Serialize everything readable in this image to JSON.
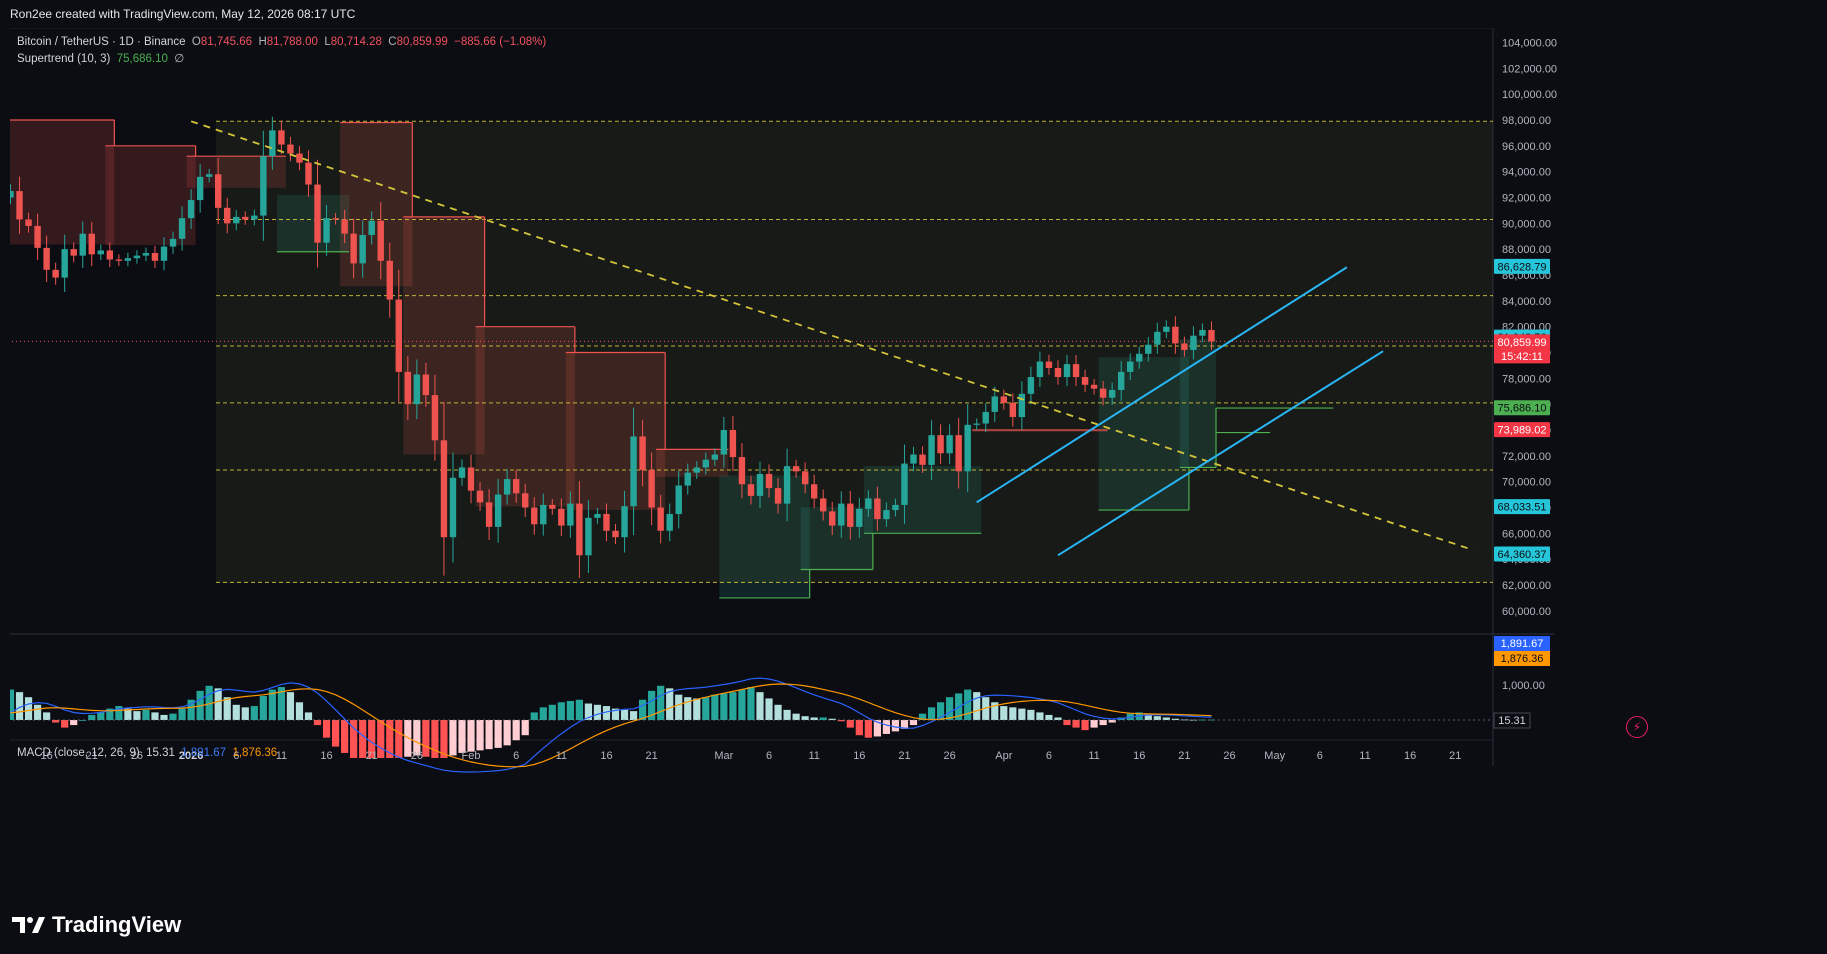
{
  "header": {
    "credit": "Ron2ee created with TradingView.com, May 12, 2026 08:17 UTC"
  },
  "legend": {
    "symbol": "Bitcoin / TetherUS · 1D · Binance",
    "open_label": "O",
    "open": "81,745.66",
    "high_label": "H",
    "high": "81,788.00",
    "low_label": "L",
    "low": "80,714.28",
    "close_label": "C",
    "close": "80,859.99",
    "change": "−885.66 (−1.08%)",
    "supertrend_label": "Supertrend (10, 3)",
    "supertrend_value": "75,686.10",
    "supertrend_icon": "∅"
  },
  "macd_legend": {
    "label": "MACD (close, 12, 26, 9)",
    "hist": "15.31",
    "macd": "1,891.67",
    "signal": "1,876.36"
  },
  "badges": {
    "level_top": "86,628.79",
    "level_81k": "81,042.56",
    "last_price": "80,859.99",
    "countdown": "15:42:11",
    "supertrend": "75,686.10",
    "level_73k": "73,989.02",
    "level_68k": "68,033.51",
    "level_64k": "64,360.37",
    "macd_line": "1,891.67",
    "macd_signal": "1,876.36",
    "macd_hist": "15.31"
  },
  "branding": {
    "name": "TradingView"
  },
  "colors": {
    "background": "#0b0d13",
    "up": "#26a69a",
    "down": "#ef5350",
    "supertrend_up": "#4caf50",
    "supertrend_down": "#ef5350",
    "channel": "#29b6f6",
    "levels": "#d4c43a",
    "macd": "#2962ff",
    "signal": "#ff9800"
  },
  "chart_data": {
    "type": "candlestick",
    "symbol": "Bitcoin / TetherUS",
    "interval": "1D",
    "exchange": "Binance",
    "y_ticks": [
      "104,000.00",
      "102,000.00",
      "100,000.00",
      "98,000.00",
      "96,000.00",
      "94,000.00",
      "92,000.00",
      "90,000.00",
      "88,000.00",
      "86,000.00",
      "84,000.00",
      "82,000.00",
      "80,000.00",
      "78,000.00",
      "76,000.00",
      "74,000.00",
      "72,000.00",
      "70,000.00",
      "68,000.00",
      "66,000.00",
      "64,000.00",
      "62,000.00",
      "60,000.00"
    ],
    "y_tick_values": [
      104000,
      102000,
      100000,
      98000,
      96000,
      94000,
      92000,
      90000,
      88000,
      86000,
      84000,
      82000,
      80000,
      78000,
      76000,
      74000,
      72000,
      70000,
      68000,
      66000,
      64000,
      62000,
      60000
    ],
    "x_labels": [
      {
        "text": "11",
        "bar": -1
      },
      {
        "text": "16",
        "bar": 4
      },
      {
        "text": "21",
        "bar": 9
      },
      {
        "text": "26",
        "bar": 14
      },
      {
        "text": "2026",
        "bar": 20
      },
      {
        "text": "6",
        "bar": 25
      },
      {
        "text": "11",
        "bar": 30
      },
      {
        "text": "16",
        "bar": 35
      },
      {
        "text": "21",
        "bar": 40
      },
      {
        "text": "26",
        "bar": 45
      },
      {
        "text": "Feb",
        "bar": 51
      },
      {
        "text": "6",
        "bar": 56
      },
      {
        "text": "11",
        "bar": 61
      },
      {
        "text": "16",
        "bar": 66
      },
      {
        "text": "21",
        "bar": 71
      },
      {
        "text": "Mar",
        "bar": 79
      },
      {
        "text": "6",
        "bar": 84
      },
      {
        "text": "11",
        "bar": 89
      },
      {
        "text": "16",
        "bar": 94
      },
      {
        "text": "21",
        "bar": 99
      },
      {
        "text": "26",
        "bar": 104
      },
      {
        "text": "Apr",
        "bar": 110
      },
      {
        "text": "6",
        "bar": 115
      },
      {
        "text": "11",
        "bar": 120
      },
      {
        "text": "16",
        "bar": 125
      },
      {
        "text": "21",
        "bar": 130
      },
      {
        "text": "26",
        "bar": 135
      },
      {
        "text": "May",
        "bar": 140
      },
      {
        "text": "6",
        "bar": 145
      },
      {
        "text": "11",
        "bar": 150
      },
      {
        "text": "16",
        "bar": 155
      },
      {
        "text": "21",
        "bar": 160
      }
    ],
    "closes": [
      92500,
      90300,
      89800,
      88100,
      86400,
      85800,
      88000,
      87500,
      89200,
      87600,
      87900,
      87200,
      87100,
      87300,
      87500,
      87700,
      87100,
      88200,
      88800,
      90400,
      91800,
      93600,
      93800,
      91200,
      90000,
      90500,
      90300,
      90600,
      95200,
      97200,
      96100,
      95400,
      94700,
      93000,
      88500,
      90400,
      90300,
      89200,
      86900,
      89100,
      90200,
      87100,
      84100,
      78500,
      76000,
      78300,
      76700,
      73200,
      65700,
      70300,
      71100,
      69300,
      68400,
      66500,
      69000,
      70200,
      69100,
      68000,
      66700,
      68200,
      67900,
      66600,
      68300,
      64300,
      67200,
      67500,
      66200,
      65700,
      68100,
      73500,
      70900,
      68000,
      66200,
      67500,
      69700,
      70700,
      71100,
      71700,
      72100,
      74000,
      71900,
      69800,
      68900,
      70600,
      69500,
      68300,
      71200,
      70800,
      69800,
      68700,
      67700,
      66600,
      68300,
      66500,
      67900,
      68700,
      67100,
      67800,
      68200,
      71400,
      72100,
      71300,
      73600,
      72200,
      73600,
      70800,
      74400,
      74500,
      75400,
      76600,
      76100,
      75000,
      76800,
      78100,
      79300,
      78800,
      78100,
      79100,
      78100,
      77500,
      77200,
      76500,
      77100,
      78500,
      79300,
      79900,
      80600,
      81600,
      82000,
      80700,
      80200,
      81300,
      81745,
      80860
    ],
    "open_first": 92000,
    "highlight_levels": [
      97900,
      90300,
      84400,
      80500,
      76100,
      70900,
      62200
    ],
    "trendline_down": {
      "from": {
        "bar": 20,
        "price": 97900
      },
      "to": {
        "bar": 162,
        "price": 64700
      }
    },
    "channel_upper": {
      "from": {
        "bar": 107,
        "price": 68400
      },
      "to": {
        "bar": 148,
        "price": 86600
      }
    },
    "channel_lower": {
      "from": {
        "bar": 116,
        "price": 64300
      },
      "to": {
        "bar": 152,
        "price": 80100
      }
    },
    "supertrend": [
      {
        "bar": 0,
        "bar_end": 11,
        "value": 98000,
        "dir": "down"
      },
      {
        "bar": 11,
        "bar_end": 20,
        "value": 96000,
        "dir": "down"
      },
      {
        "bar": 20,
        "bar_end": 30,
        "value": 95200,
        "dir": "down"
      },
      {
        "bar": 30,
        "bar_end": 37,
        "value": 87800,
        "dir": "up"
      },
      {
        "bar": 37,
        "bar_end": 44,
        "value": 97800,
        "dir": "down"
      },
      {
        "bar": 44,
        "bar_end": 52,
        "value": 90500,
        "dir": "down"
      },
      {
        "bar": 52,
        "bar_end": 62,
        "value": 82000,
        "dir": "down"
      },
      {
        "bar": 62,
        "bar_end": 72,
        "value": 80000,
        "dir": "down"
      },
      {
        "bar": 72,
        "bar_end": 79,
        "value": 72500,
        "dir": "down"
      },
      {
        "bar": 79,
        "bar_end": 88,
        "value": 61000,
        "dir": "up"
      },
      {
        "bar": 88,
        "bar_end": 95,
        "value": 63200,
        "dir": "up"
      },
      {
        "bar": 95,
        "bar_end": 107,
        "value": 66000,
        "dir": "up"
      },
      {
        "bar": 107,
        "bar_end": 121,
        "value": 74000,
        "dir": "down"
      },
      {
        "bar": 121,
        "bar_end": 130,
        "value": 67800,
        "dir": "up"
      },
      {
        "bar": 130,
        "bar_end": 140,
        "value": 71100,
        "dir": "up"
      },
      {
        "bar": 140,
        "bar_end": 147,
        "value": 73800,
        "dir": "up"
      },
      {
        "bar": 147,
        "bar_end": 153,
        "value": 75700,
        "dir": "up"
      }
    ],
    "macd": {
      "hist_max": 1500,
      "hist": [
        1200,
        1100,
        900,
        600,
        300,
        -100,
        -300,
        -200,
        0,
        200,
        300,
        450,
        550,
        450,
        350,
        400,
        300,
        200,
        250,
        450,
        800,
        1150,
        1350,
        1250,
        900,
        600,
        500,
        550,
        950,
        1200,
        1300,
        1100,
        700,
        300,
        -200,
        -700,
        -1050,
        -1300,
        -1500,
        -1500,
        -1500,
        -1500,
        -1500,
        -1500,
        -1450,
        -1400,
        -1450,
        -1500,
        -1500,
        -1400,
        -1300,
        -1250,
        -1200,
        -1150,
        -1100,
        -1000,
        -800,
        -600,
        300,
        500,
        600,
        700,
        750,
        800,
        650,
        600,
        550,
        450,
        400,
        350,
        800,
        1150,
        1350,
        1250,
        1000,
        900,
        850,
        900,
        1000,
        1050,
        1100,
        1200,
        1300,
        1100,
        850,
        600,
        400,
        250,
        150,
        100,
        100,
        50,
        -50,
        -300,
        -600,
        -700,
        -650,
        -550,
        -450,
        -350,
        -200,
        250,
        500,
        700,
        900,
        1050,
        1200,
        1100,
        900,
        700,
        550,
        500,
        450,
        400,
        300,
        200,
        100,
        -200,
        -300,
        -400,
        -300,
        -200,
        -100,
        100,
        250,
        300,
        250,
        150,
        100,
        50,
        20,
        10,
        15,
        15
      ]
    }
  }
}
